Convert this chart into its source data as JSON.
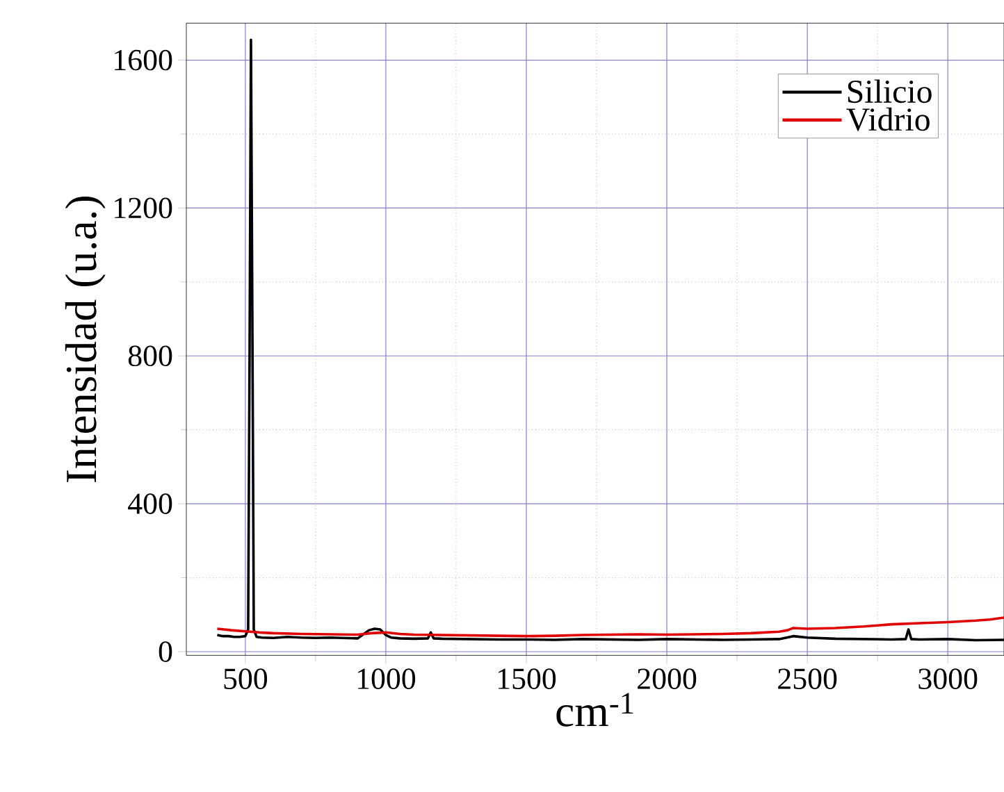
{
  "chart_data": {
    "type": "line",
    "xlabel": "cm$^{-1}$",
    "ylabel": "Intensidad (u.a.)",
    "xlim": [
      290,
      3200
    ],
    "xticks": [
      500,
      1000,
      1500,
      2000,
      2500,
      3000
    ],
    "ylim": [
      -10,
      1700
    ],
    "yticks": [
      0,
      400,
      800,
      1200,
      1600
    ],
    "grid": true,
    "legend": "top right",
    "marker": "none",
    "line_style": "solid",
    "series": [
      {
        "name": "Silicio",
        "color": "#000000",
        "x": [
          400,
          420,
          440,
          460,
          480,
          500,
          510,
          515,
          520,
          525,
          530,
          540,
          560,
          600,
          650,
          700,
          750,
          800,
          850,
          900,
          940,
          960,
          980,
          1000,
          1020,
          1050,
          1100,
          1150,
          1160,
          1170,
          1200,
          1300,
          1400,
          1500,
          1600,
          1700,
          1800,
          1900,
          2000,
          2100,
          2200,
          2300,
          2400,
          2450,
          2500,
          2600,
          2700,
          2800,
          2850,
          2860,
          2870,
          2900,
          3000,
          3100,
          3200
        ],
        "values": [
          45,
          42,
          42,
          40,
          40,
          42,
          60,
          800,
          1655,
          900,
          60,
          40,
          38,
          37,
          40,
          38,
          37,
          38,
          37,
          36,
          58,
          62,
          60,
          45,
          38,
          36,
          35,
          36,
          52,
          36,
          35,
          34,
          33,
          33,
          32,
          34,
          33,
          32,
          34,
          33,
          32,
          33,
          34,
          42,
          38,
          35,
          34,
          33,
          34,
          60,
          34,
          33,
          34,
          31,
          32
        ]
      },
      {
        "name": "Vidrio",
        "color": "#e00000",
        "x": [
          400,
          450,
          500,
          550,
          600,
          700,
          800,
          900,
          950,
          1000,
          1050,
          1100,
          1200,
          1300,
          1400,
          1500,
          1600,
          1700,
          1800,
          1900,
          2000,
          2100,
          2200,
          2300,
          2400,
          2430,
          2450,
          2500,
          2600,
          2700,
          2800,
          2900,
          3000,
          3100,
          3150,
          3200
        ],
        "values": [
          62,
          58,
          55,
          52,
          50,
          48,
          47,
          46,
          50,
          52,
          48,
          46,
          45,
          44,
          43,
          42,
          43,
          45,
          46,
          47,
          46,
          47,
          48,
          50,
          54,
          58,
          64,
          62,
          64,
          68,
          74,
          77,
          80,
          84,
          87,
          92
        ]
      }
    ]
  }
}
